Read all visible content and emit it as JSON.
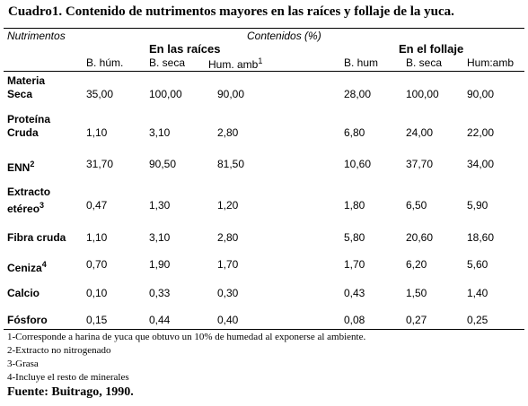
{
  "title": "Cuadro1. Contenido de nutrimentos mayores en las raíces y follaje de la yuca.",
  "header": {
    "col_nutrients": "Nutrimentos",
    "col_contents": "Contenidos (%)",
    "group_roots": "En las raíces",
    "group_foliage": "En el follaje",
    "sub_roots": [
      "B. húm.",
      "B. seca",
      "Hum. amb"
    ],
    "sub_roots_hum_note": "1",
    "sub_foliage": [
      "B. hum",
      "B. seca",
      "Hum:amb"
    ]
  },
  "rows": [
    {
      "label": "Materia",
      "label2": "Seca",
      "sup": "",
      "values": [
        "35,00",
        "100,00",
        "90,00",
        "28,00",
        "100,00",
        "90,00"
      ]
    },
    {
      "label": "Proteína",
      "label2": "Cruda",
      "sup": "",
      "values": [
        "1,10",
        "3,10",
        "2,80",
        "6,80",
        "24,00",
        "22,00"
      ]
    },
    {
      "label": "ENN",
      "label2": "",
      "sup": "2",
      "values": [
        "31,70",
        "90,50",
        "81,50",
        "10,60",
        "37,70",
        "34,00"
      ]
    },
    {
      "label": "Extracto",
      "label2": "etéreo",
      "sup": "3",
      "values": [
        "0,47",
        "1,30",
        "1,20",
        "1,80",
        "6,50",
        "5,90"
      ]
    },
    {
      "label": "Fibra cruda",
      "label2": "",
      "sup": "",
      "values": [
        "1,10",
        "3,10",
        "2,80",
        "5,80",
        "20,60",
        "18,60"
      ]
    },
    {
      "label": "Ceniza",
      "label2": "",
      "sup": "4",
      "values": [
        "0,70",
        "1,90",
        "1,70",
        "1,70",
        "6,20",
        "5,60"
      ]
    },
    {
      "label": "Calcio",
      "label2": "",
      "sup": "",
      "values": [
        "0,10",
        "0,33",
        "0,30",
        "0,43",
        "1,50",
        "1,40"
      ]
    },
    {
      "label": "Fósforo",
      "label2": "",
      "sup": "",
      "values": [
        "0,15",
        "0,44",
        "0,40",
        "0,08",
        "0,27",
        "0,25"
      ]
    }
  ],
  "footnotes": [
    "1-Corresponde a harina de yuca que obtuvo un 10% de humedad al exponerse al ambiente.",
    "2-Extracto no nitrogenado",
    "3-Grasa",
    "4-Incluye el resto de minerales"
  ],
  "source": "Fuente: Buitrago, 1990."
}
